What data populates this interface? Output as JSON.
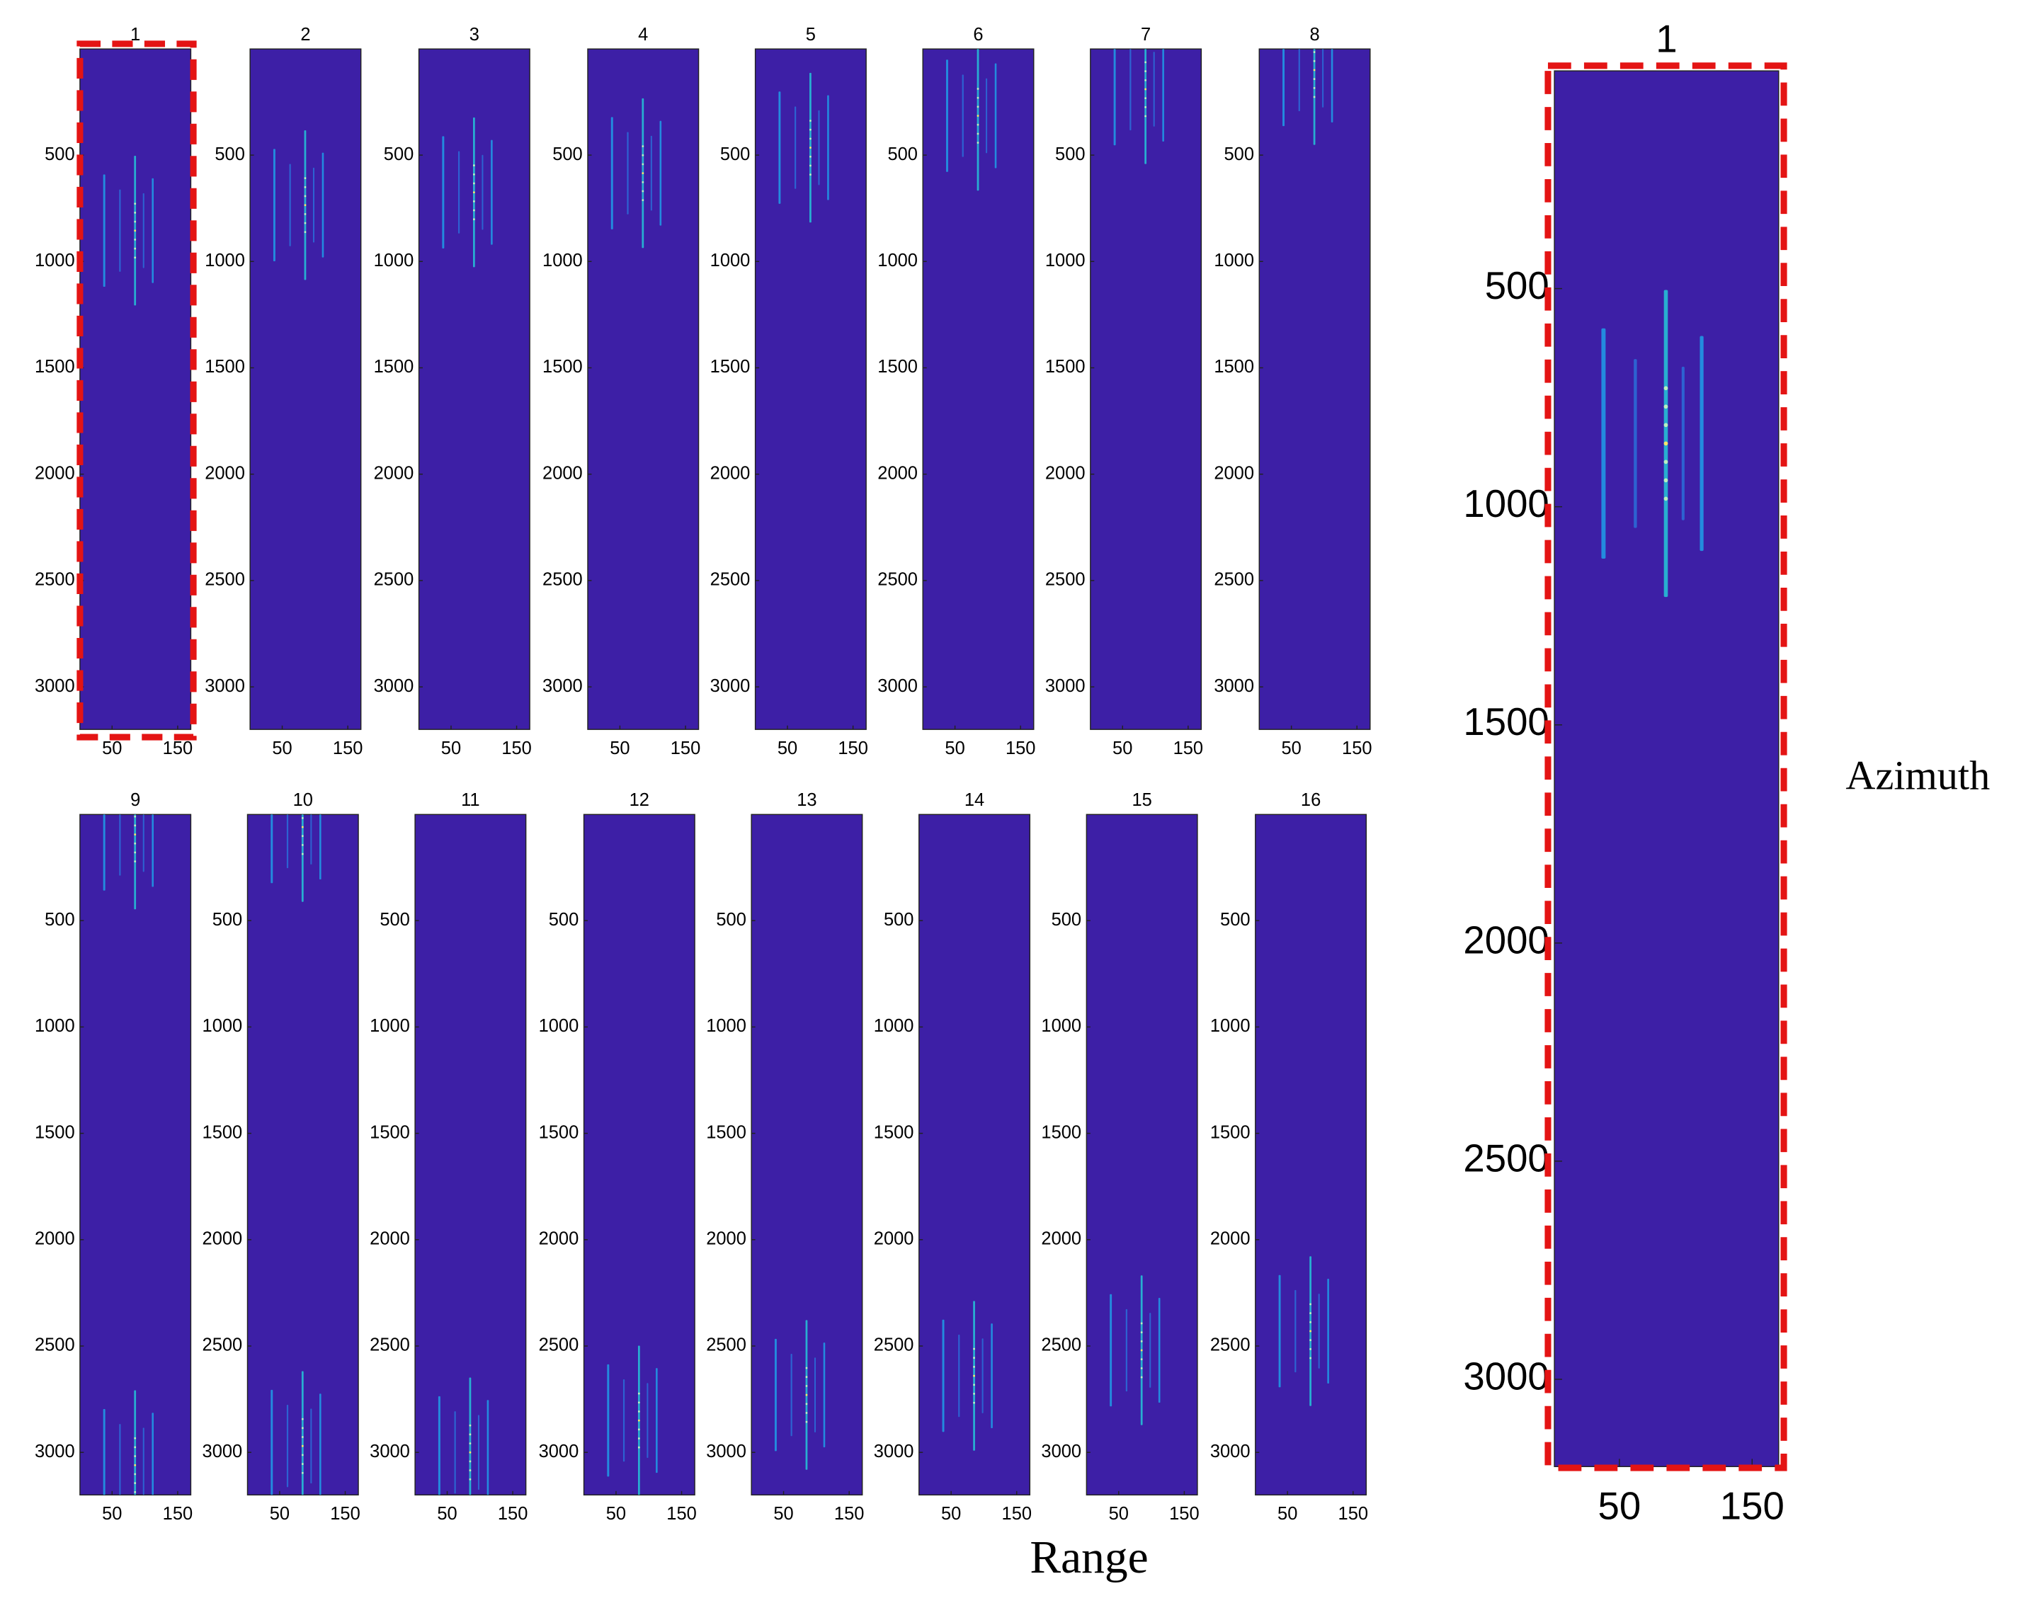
{
  "chart_data": {
    "type": "heatmap-grid",
    "xlabel": "Range",
    "ylabel": "Azimuth",
    "xlim": [
      1,
      170
    ],
    "ylim": [
      1,
      3200
    ],
    "xticks": [
      50,
      150
    ],
    "yticks": [
      500,
      1000,
      1500,
      2000,
      2500,
      3000
    ],
    "background_color": "#3d1fa6",
    "panels": [
      {
        "title": "1",
        "center_azimuth": [
          855
        ]
      },
      {
        "title": "2",
        "center_azimuth": [
          735
        ]
      },
      {
        "title": "3",
        "center_azimuth": [
          675
        ]
      },
      {
        "title": "4",
        "center_azimuth": [
          585
        ]
      },
      {
        "title": "5",
        "center_azimuth": [
          465
        ]
      },
      {
        "title": "6",
        "center_azimuth": [
          315
        ]
      },
      {
        "title": "7",
        "center_azimuth": [
          190
        ]
      },
      {
        "title": "8",
        "center_azimuth": [
          100
        ]
      },
      {
        "title": "9",
        "center_azimuth": [
          95,
          3060
        ]
      },
      {
        "title": "10",
        "center_azimuth": [
          60,
          2970
        ]
      },
      {
        "title": "11",
        "center_azimuth": [
          3000
        ]
      },
      {
        "title": "12",
        "center_azimuth": [
          2850
        ]
      },
      {
        "title": "13",
        "center_azimuth": [
          2730
        ]
      },
      {
        "title": "14",
        "center_azimuth": [
          2640
        ]
      },
      {
        "title": "15",
        "center_azimuth": [
          2520
        ]
      },
      {
        "title": "16",
        "center_azimuth": [
          2430
        ]
      }
    ],
    "zoom": {
      "title": "1",
      "center_azimuth": [
        855
      ]
    }
  }
}
